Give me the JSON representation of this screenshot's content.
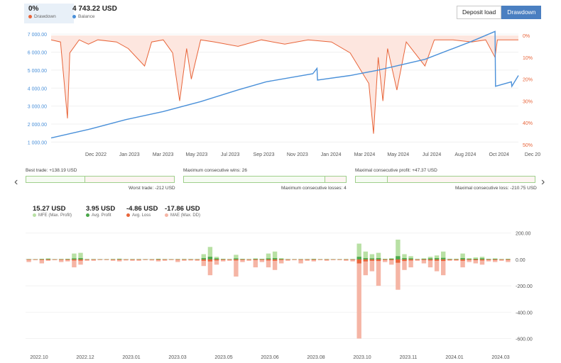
{
  "header": {
    "drawdown_value": "0%",
    "drawdown_label": "Drawdown",
    "balance_value": "4 743.22 USD",
    "balance_label": "Balance",
    "btn_deposit_load": "Deposit load",
    "btn_drawdown": "Drawdown"
  },
  "colors": {
    "drawdown": "#e8653a",
    "balance": "#4a90d9",
    "drawdown_fill": "#fde6df",
    "mfe": "#b8e0a4",
    "avg_profit": "#4aa84a",
    "avg_loss": "#e8653a",
    "mae": "#f5b5a5"
  },
  "middle": {
    "best_trade": "Best trade: +138.19 USD",
    "worst_trade": "Worst trade: -212 USD",
    "max_consec_wins": "Maximum consecutive wins: 26",
    "max_consec_losses": "Maximum consecutive losses: 4",
    "max_consec_profit": "Maximal consecutive profit: +47.37 USD",
    "max_consec_loss": "Maximal consecutive loss: -210.75 USD"
  },
  "legend2": {
    "mfe_value": "15.27 USD",
    "mfe_label": "MFE (Max. Profit)",
    "avg_profit_value": "3.95 USD",
    "avg_profit_label": "Avg. Profit",
    "avg_loss_value": "-4.86 USD",
    "avg_loss_label": "Avg. Loss",
    "mae_value": "-17.86 USD",
    "mae_label": "MAE (Max. DD)"
  },
  "nav": {
    "left_arrow": "‹",
    "right_arrow": "›"
  },
  "chart_data": [
    {
      "type": "line",
      "title": "",
      "x_ticks": [
        "Dec 2022",
        "Jan 2023",
        "Mar 2023",
        "May 2023",
        "Jul 2023",
        "Sep 2023",
        "Nov 2023",
        "Jan 2024",
        "Mar 2024",
        "May 2024",
        "Jul 2024",
        "Aug 2024",
        "Oct 2024",
        "Dec 20"
      ],
      "y_left_ticks": [
        "1 000.00",
        "2 000.00",
        "3 000.00",
        "4 000.00",
        "5 000.00",
        "6 000.00",
        "7 000.00"
      ],
      "y_left_range": [
        700,
        7400
      ],
      "y_right_ticks": [
        "0%",
        "10%",
        "20%",
        "30%",
        "40%",
        "50%"
      ],
      "y_right_range": [
        0,
        50
      ],
      "x_range": [
        0,
        1000
      ],
      "series": [
        {
          "name": "Balance",
          "axis": "left",
          "points": [
            [
              0,
              1230
            ],
            [
              80,
              1700
            ],
            [
              160,
              2250
            ],
            [
              240,
              2700
            ],
            [
              320,
              3250
            ],
            [
              400,
              3900
            ],
            [
              460,
              4350
            ],
            [
              560,
              4800
            ],
            [
              569,
              5100
            ],
            [
              570,
              4450
            ],
            [
              640,
              4700
            ],
            [
              700,
              5000
            ],
            [
              800,
              5600
            ],
            [
              900,
              6600
            ],
            [
              950,
              7150
            ],
            [
              951,
              4100
            ],
            [
              985,
              4350
            ],
            [
              986,
              4100
            ],
            [
              1000,
              4700
            ]
          ]
        },
        {
          "name": "Drawdown",
          "axis": "right",
          "points": [
            [
              0,
              2
            ],
            [
              20,
              3
            ],
            [
              35,
              38
            ],
            [
              40,
              8
            ],
            [
              60,
              2
            ],
            [
              80,
              4
            ],
            [
              100,
              2
            ],
            [
              140,
              3
            ],
            [
              165,
              6
            ],
            [
              200,
              14
            ],
            [
              215,
              3
            ],
            [
              240,
              2
            ],
            [
              260,
              8
            ],
            [
              275,
              30
            ],
            [
              290,
              6
            ],
            [
              300,
              20
            ],
            [
              320,
              2
            ],
            [
              350,
              3
            ],
            [
              400,
              5
            ],
            [
              450,
              2
            ],
            [
              500,
              4
            ],
            [
              550,
              2
            ],
            [
              600,
              3
            ],
            [
              640,
              8
            ],
            [
              680,
              22
            ],
            [
              690,
              45
            ],
            [
              700,
              10
            ],
            [
              710,
              30
            ],
            [
              720,
              6
            ],
            [
              740,
              25
            ],
            [
              760,
              3
            ],
            [
              800,
              14
            ],
            [
              820,
              2
            ],
            [
              860,
              2
            ],
            [
              900,
              3
            ],
            [
              930,
              2
            ],
            [
              950,
              10
            ],
            [
              955,
              2
            ],
            [
              970,
              2
            ],
            [
              1000,
              2
            ]
          ]
        }
      ]
    },
    {
      "type": "bar",
      "title": "",
      "x_ticks": [
        "2022.10",
        "2022.12",
        "2023.01",
        "2023.03",
        "2023.05",
        "2023.06",
        "2023.08",
        "2023.10",
        "2023.11",
        "2024.01",
        "2024.03"
      ],
      "y_ticks": [
        "200.00",
        "0.00",
        "-200.00",
        "-400.00",
        "-600.00"
      ],
      "ylim": [
        -640,
        220
      ],
      "series": [
        {
          "name": "MFE (Max. Profit)",
          "values": [
            3,
            2,
            5,
            8,
            2,
            4,
            5,
            45,
            50,
            3,
            3,
            2,
            2,
            4,
            6,
            2,
            3,
            3,
            2,
            2,
            5,
            3,
            2,
            3,
            4,
            3,
            3,
            40,
            95,
            20,
            5,
            3,
            35,
            5,
            3,
            8,
            5,
            45,
            60,
            10,
            3,
            2,
            3,
            3,
            5,
            2,
            3,
            2,
            2,
            3,
            3,
            120,
            60,
            40,
            50,
            5,
            10,
            150,
            40,
            25,
            4,
            8,
            20,
            30,
            60,
            5,
            5,
            45,
            10,
            15,
            20,
            5,
            8,
            3,
            5
          ]
        },
        {
          "name": "Avg. Profit",
          "values": [
            2,
            1,
            3,
            4,
            1,
            2,
            3,
            8,
            10,
            2,
            2,
            1,
            1,
            2,
            3,
            1,
            2,
            2,
            1,
            1,
            3,
            2,
            1,
            2,
            2,
            2,
            2,
            10,
            20,
            8,
            3,
            2,
            8,
            3,
            2,
            4,
            3,
            8,
            10,
            4,
            2,
            1,
            2,
            2,
            3,
            1,
            2,
            1,
            1,
            2,
            2,
            20,
            10,
            8,
            10,
            3,
            5,
            25,
            10,
            8,
            2,
            4,
            8,
            10,
            12,
            3,
            3,
            10,
            4,
            5,
            8,
            3,
            4,
            2,
            3
          ]
        },
        {
          "name": "Avg. Loss",
          "values": [
            -3,
            -2,
            -4,
            -5,
            -2,
            -3,
            -4,
            -8,
            -9,
            -3,
            -3,
            -2,
            -2,
            -3,
            -4,
            -2,
            -3,
            -3,
            -2,
            -2,
            -4,
            -3,
            -2,
            -3,
            -3,
            -3,
            -3,
            -10,
            -15,
            -8,
            -4,
            -3,
            -8,
            -4,
            -3,
            -5,
            -4,
            -8,
            -10,
            -5,
            -3,
            -2,
            -3,
            -3,
            -4,
            -2,
            -3,
            -2,
            -2,
            -3,
            -3,
            -30,
            -15,
            -10,
            -12,
            -4,
            -6,
            -25,
            -12,
            -8,
            -3,
            -5,
            -8,
            -10,
            -12,
            -4,
            -4,
            -10,
            -5,
            -6,
            -8,
            -4,
            -5,
            -3,
            -4
          ]
        },
        {
          "name": "MAE (Max. DD)",
          "values": [
            -20,
            -5,
            -30,
            -10,
            -5,
            -20,
            -15,
            -60,
            -40,
            -10,
            -10,
            -5,
            -5,
            -10,
            -15,
            -8,
            -10,
            -10,
            -5,
            -8,
            -15,
            -10,
            -5,
            -20,
            -10,
            -8,
            -10,
            -50,
            -120,
            -40,
            -15,
            -10,
            -130,
            -20,
            -10,
            -60,
            -20,
            -60,
            -80,
            -30,
            -10,
            -5,
            -30,
            -10,
            -15,
            -5,
            -10,
            -5,
            -5,
            -10,
            -15,
            -600,
            -120,
            -90,
            -200,
            -20,
            -40,
            -230,
            -80,
            -60,
            -10,
            -30,
            -60,
            -90,
            -120,
            -10,
            -10,
            -60,
            -20,
            -30,
            -40,
            -15,
            -20,
            -10,
            -20
          ]
        }
      ]
    }
  ]
}
